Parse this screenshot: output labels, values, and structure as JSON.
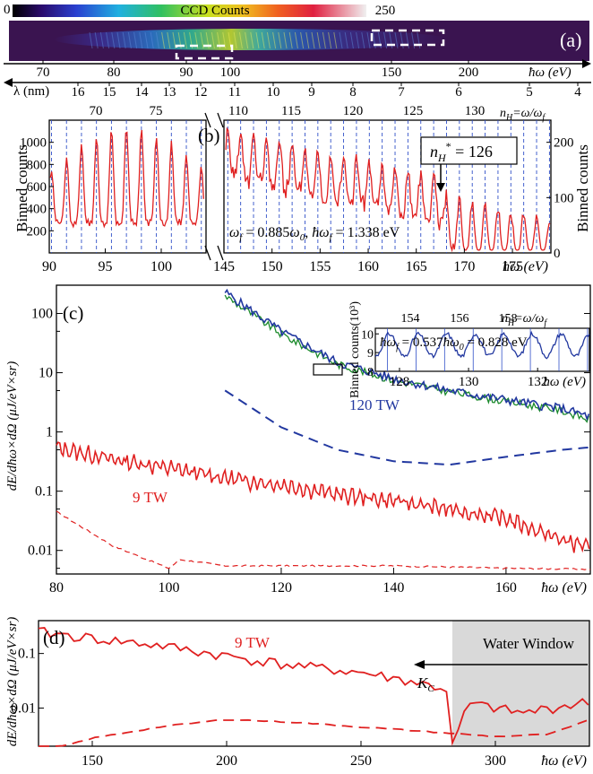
{
  "colors": {
    "red": "#e02020",
    "blue": "#2238a0",
    "green": "#1a8a2a",
    "gridBlue": "#3050c8",
    "shade": "#d9d9d9",
    "ccdBg": "#3a1450"
  },
  "panel_a": {
    "label": "(a)",
    "colorbar": {
      "min": "0",
      "title": "CCD Counts",
      "max": "250"
    },
    "energy_axis": {
      "ticks": [
        "70",
        "80",
        "90",
        "100",
        "150",
        "200"
      ],
      "ticks_x": [
        70,
        80,
        90,
        100,
        150,
        200
      ],
      "unit": "ħω (eV)"
    },
    "wavelength_axis": {
      "label": "λ (nm)",
      "ticks": [
        "16",
        "15",
        "14",
        "13",
        "12",
        "11",
        "10",
        "9",
        "8",
        "7",
        "6",
        "5",
        "4"
      ]
    }
  },
  "panel_b": {
    "label": "(b)",
    "ylabel_left": "Binned counts",
    "ylabel_right": "Binned counts",
    "yticks_left": [
      "200",
      "400",
      "600",
      "800",
      "1000"
    ],
    "yticks_right": [
      "0",
      "100",
      "200"
    ],
    "top_harmonics_left": [
      "70",
      "75"
    ],
    "top_harmonics_right": [
      "110",
      "115",
      "120",
      "125",
      "130"
    ],
    "top_axis_label": "n_H = ω/ω_f",
    "xticks_left": [
      "90",
      "95",
      "100"
    ],
    "xticks_right": [
      "145",
      "150",
      "155",
      "160",
      "165",
      "170",
      "175"
    ],
    "xunit": "ħω (eV)",
    "annotation_box": "n*_H = 126",
    "annotation_formula": "ω_f = 0.885ω_0, ħω_f = 1.338 eV"
  },
  "panel_c": {
    "label": "(c)",
    "ylabel": "dE/dħω×dΩ (μJ/eV×sr)",
    "yticks": [
      "0.01",
      "0.1",
      "1",
      "10",
      "100"
    ],
    "xticks": [
      "80",
      "100",
      "120",
      "140",
      "160"
    ],
    "xunit": "ħω (eV)",
    "series_labels": {
      "high": "120 TW",
      "low": "9 TW"
    },
    "inset": {
      "ylabel": "Binned counts(10³)",
      "yticks": [
        "8",
        "9",
        "10"
      ],
      "xticks": [
        "128",
        "130",
        "132"
      ],
      "top_ticks": [
        "154",
        "156",
        "158"
      ],
      "top_label": "n_H = ω/ω_f",
      "formula": "ħω_f = 0.537ħω_0 = 0.828 eV",
      "xunit": "ħω (eV)"
    }
  },
  "panel_d": {
    "label": "(d)",
    "ylabel": "dE/dħω×dΩ (μJ/eV×sr)",
    "yticks": [
      "0.01",
      "0.1"
    ],
    "xticks": [
      "150",
      "200",
      "250",
      "300"
    ],
    "xunit": "ħω (eV)",
    "series_label": "9 TW",
    "water_window": "Water Window",
    "edge_label": "K_C"
  },
  "chart_data": [
    {
      "panel": "b",
      "type": "line",
      "xlabel": "ħω (eV)",
      "ylabel": "Binned counts",
      "segments": [
        {
          "xlim": [
            90,
            104
          ],
          "ylim": [
            0,
            1200
          ],
          "harmonic_spacing_eV": 1.338,
          "peak_range": [
            700,
            1150
          ],
          "trough_range": [
            200,
            350
          ]
        },
        {
          "xlim": [
            145,
            179
          ],
          "ylim": [
            0,
            240
          ],
          "harmonic_spacing_eV": 1.338,
          "peak_range": [
            90,
            225
          ],
          "trough_range": [
            5,
            110
          ]
        }
      ],
      "annotation": {
        "x": 168,
        "label": "n*_H = 126"
      }
    },
    {
      "panel": "c",
      "type": "line",
      "yscale": "log",
      "xlim": [
        80,
        175
      ],
      "ylim": [
        0.004,
        300
      ],
      "xlabel": "ħω (eV)",
      "ylabel": "dE/dħω×dΩ (μJ/eV×sr)",
      "series": [
        {
          "name": "120 TW",
          "style": "solid",
          "color": "blue",
          "x": [
            110,
            120,
            130,
            140,
            150,
            160,
            170,
            175
          ],
          "y": [
            230,
            50,
            15,
            8,
            5,
            3.5,
            2.5,
            1.8
          ]
        },
        {
          "style": "solid",
          "color": "green",
          "x": [
            110,
            120,
            130,
            140,
            150,
            160,
            170,
            175
          ],
          "y": [
            200,
            45,
            14,
            7.5,
            4.8,
            3.3,
            2.3,
            1.6
          ]
        },
        {
          "style": "dashed",
          "color": "blue",
          "x": [
            110,
            120,
            130,
            140,
            150,
            160,
            170,
            175
          ],
          "y": [
            5,
            1.2,
            0.5,
            0.32,
            0.28,
            0.38,
            0.5,
            0.55
          ]
        },
        {
          "name": "9 TW",
          "style": "solid",
          "color": "red",
          "x": [
            80,
            90,
            100,
            110,
            120,
            130,
            140,
            150,
            160,
            170,
            175
          ],
          "y": [
            0.55,
            0.35,
            0.25,
            0.17,
            0.13,
            0.09,
            0.07,
            0.05,
            0.035,
            0.015,
            0.012
          ]
        },
        {
          "style": "dashed",
          "color": "red",
          "x": [
            80,
            90,
            100,
            102,
            110,
            120,
            140,
            160,
            175
          ],
          "y": [
            0.045,
            0.012,
            0.005,
            0.007,
            0.0055,
            0.0055,
            0.0055,
            0.005,
            0.0048
          ]
        }
      ],
      "inset": {
        "type": "line",
        "xlim": [
          127.3,
          133.5
        ],
        "ylim": [
          8,
          10.3
        ],
        "harmonic_spacing_eV": 0.828
      }
    },
    {
      "panel": "d",
      "type": "line",
      "yscale": "log",
      "xlim": [
        130,
        335
      ],
      "ylim": [
        0.002,
        0.4
      ],
      "xlabel": "ħω (eV)",
      "ylabel": "dE/dħω×dΩ (μJ/eV×sr)",
      "water_window_x": [
        284,
        335
      ],
      "series": [
        {
          "name": "9 TW",
          "style": "solid",
          "color": "red",
          "x": [
            130,
            150,
            175,
            200,
            225,
            250,
            270,
            282,
            284,
            290,
            300,
            310,
            320,
            335
          ],
          "y": [
            0.25,
            0.19,
            0.14,
            0.09,
            0.06,
            0.045,
            0.03,
            0.022,
            0.002,
            0.012,
            0.01,
            0.008,
            0.01,
            0.013
          ]
        },
        {
          "style": "dashed",
          "color": "red",
          "x": [
            130,
            150,
            175,
            200,
            225,
            250,
            275,
            300,
            320,
            335
          ],
          "y": [
            0.0015,
            0.0028,
            0.0045,
            0.0062,
            0.0055,
            0.0045,
            0.0037,
            0.003,
            0.0033,
            0.006
          ]
        }
      ]
    }
  ]
}
